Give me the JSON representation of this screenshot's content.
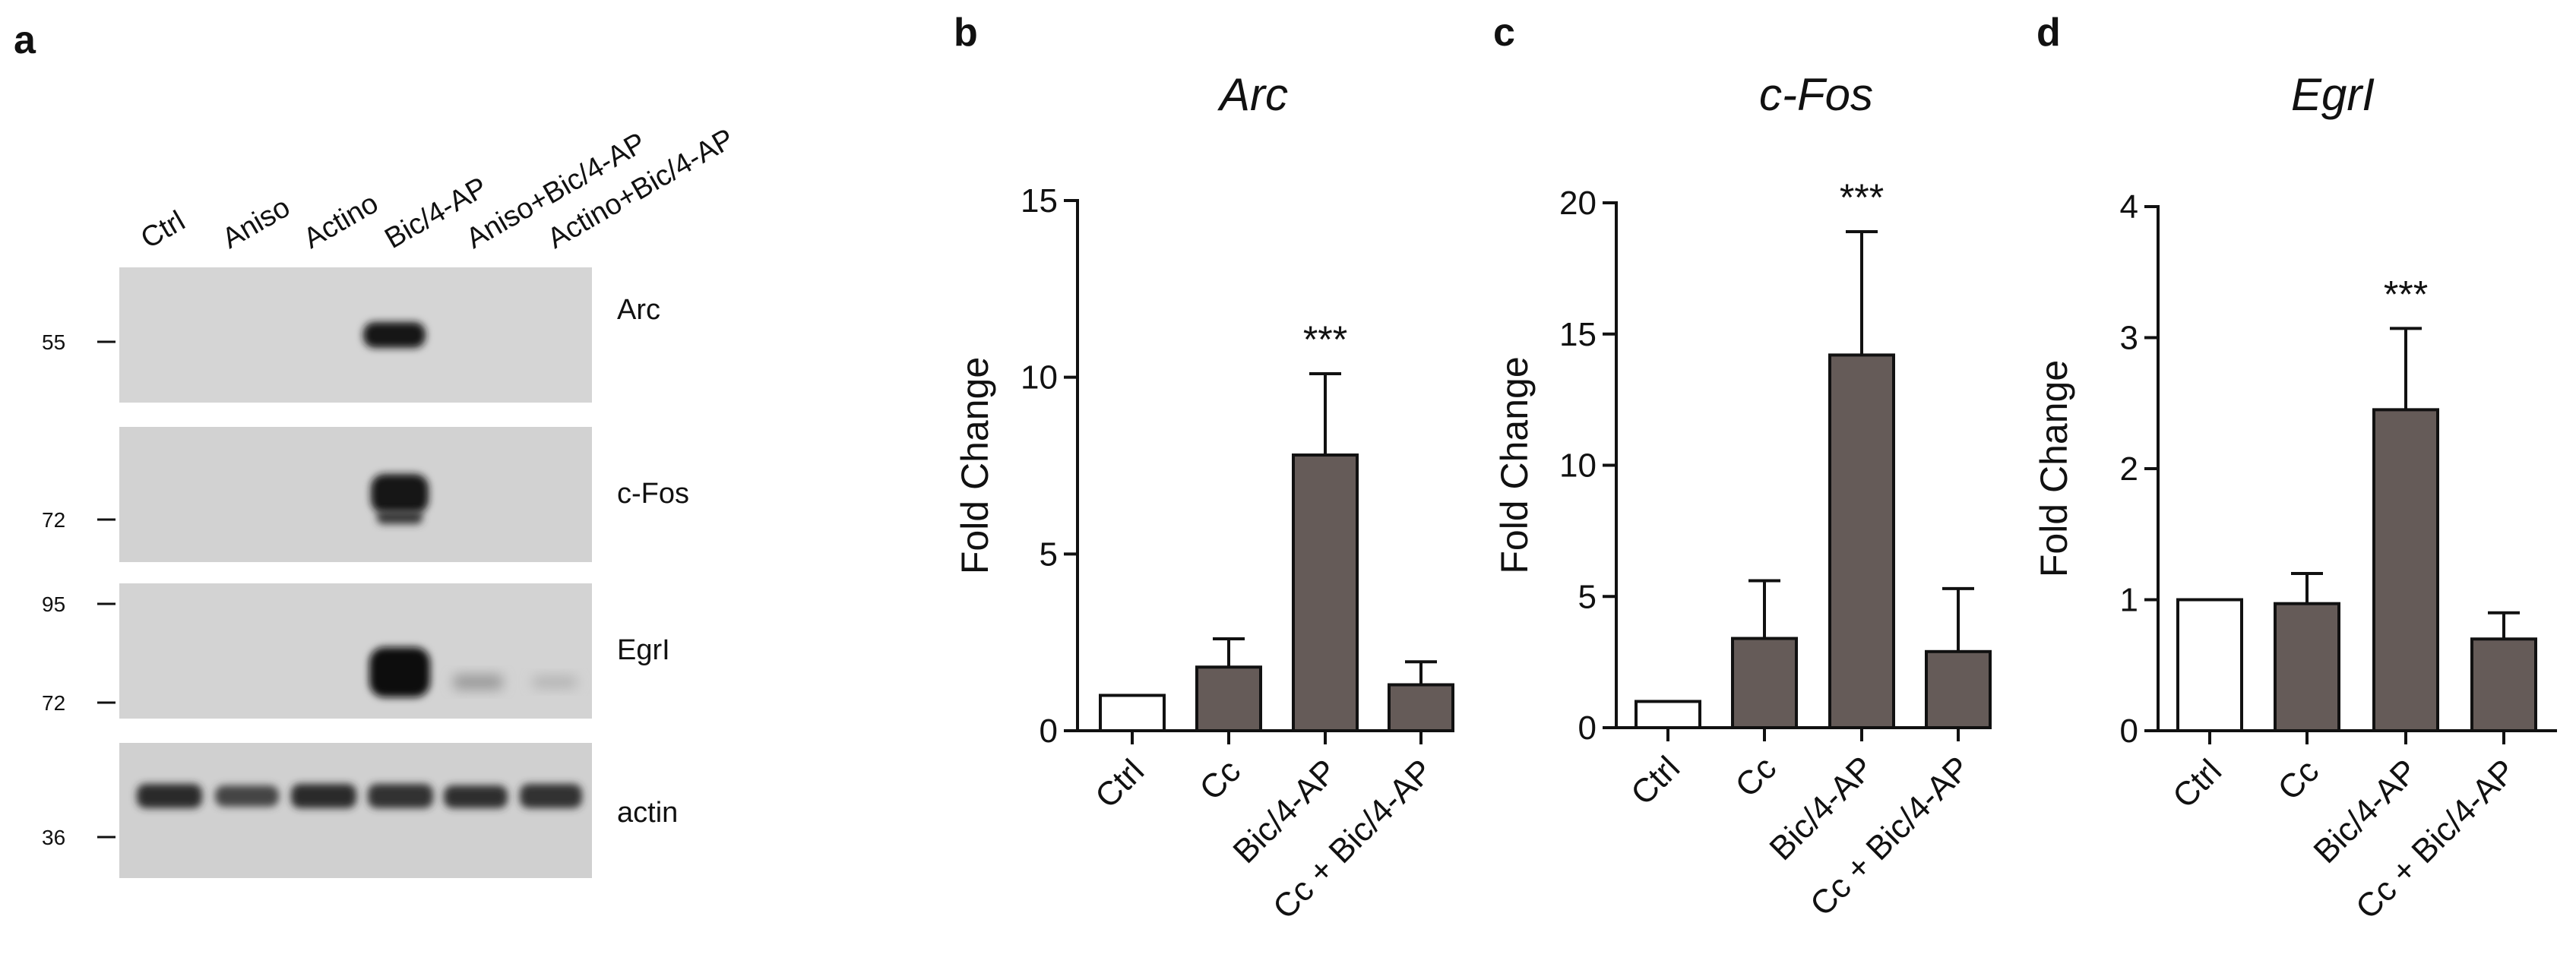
{
  "panel_letters": [
    "a",
    "b",
    "c",
    "d"
  ],
  "blot": {
    "lanes": [
      "Ctrl",
      "Aniso",
      "Actino",
      "Bic/4-AP",
      "Aniso+Bic/4-AP",
      "Actino+Bic/4-AP"
    ],
    "rows": [
      {
        "protein": "Arc",
        "markers": [
          "55"
        ]
      },
      {
        "protein": "c-Fos",
        "markers": [
          "72"
        ]
      },
      {
        "protein": "EgrI",
        "markers": [
          "95",
          "72"
        ]
      },
      {
        "protein": "actin",
        "markers": [
          "36"
        ]
      }
    ]
  },
  "colors": {
    "bar_fill": "#655b58",
    "ctrl_fill": "#ffffff",
    "axis": "#111111",
    "blot_bg": "#d4d4d4",
    "band": "#1a1a1a"
  },
  "chart_data": [
    {
      "type": "bar",
      "title": "Arc",
      "ylabel": "Fold Change",
      "xlabel": "",
      "ylim": [
        0,
        15
      ],
      "yticks": [
        0,
        5,
        10,
        15
      ],
      "categories": [
        "Ctrl",
        "Cc",
        "Bic/4-AP",
        "Cc + Bic/4-AP"
      ],
      "values": [
        1.0,
        1.8,
        7.8,
        1.3
      ],
      "errors": [
        0,
        0.8,
        2.3,
        0.65
      ],
      "annotations": [
        {
          "category": "Bic/4-AP",
          "text": "***"
        }
      ]
    },
    {
      "type": "bar",
      "title": "c-Fos",
      "ylabel": "Fold Change",
      "xlabel": "",
      "ylim": [
        0,
        20
      ],
      "yticks": [
        0,
        5,
        10,
        15,
        20
      ],
      "categories": [
        "Ctrl",
        "Cc",
        "Bic/4-AP",
        "Cc + Bic/4-AP"
      ],
      "values": [
        1.0,
        3.4,
        14.2,
        2.9
      ],
      "errors": [
        0,
        2.2,
        4.7,
        2.4
      ],
      "annotations": [
        {
          "category": "Bic/4-AP",
          "text": "***"
        }
      ]
    },
    {
      "type": "bar",
      "title": "EgrI",
      "ylabel": "Fold Change",
      "xlabel": "",
      "ylim": [
        0,
        4
      ],
      "yticks": [
        0,
        1,
        2,
        3,
        4
      ],
      "categories": [
        "Ctrl",
        "Cc",
        "Bic/4-AP",
        "Cc + Bic/4-AP"
      ],
      "values": [
        1.0,
        0.97,
        2.45,
        0.7
      ],
      "errors": [
        0,
        0.23,
        0.62,
        0.2
      ],
      "annotations": [
        {
          "category": "Bic/4-AP",
          "text": "***"
        }
      ]
    }
  ]
}
